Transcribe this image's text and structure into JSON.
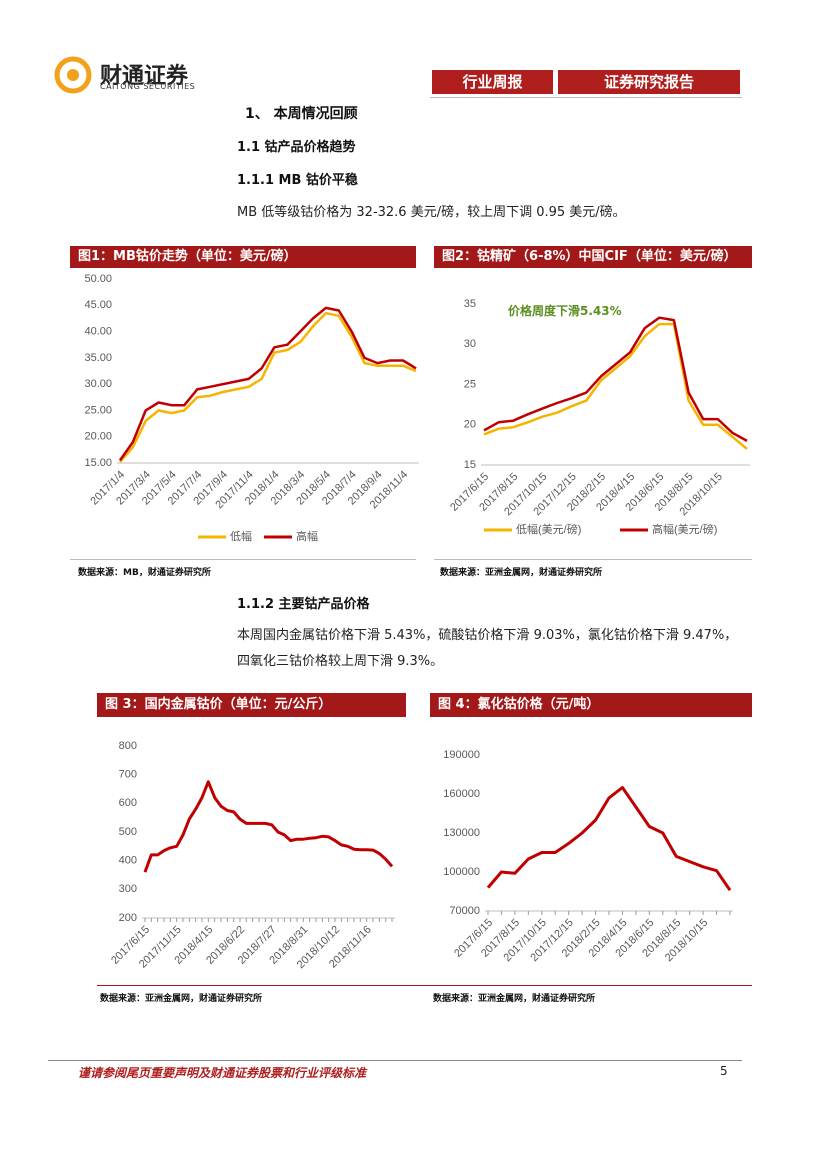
{
  "header": {
    "brand": "财通证券",
    "brand_en": "CAITONG SECURITIES",
    "tabs": [
      "行业周报",
      "证券研究报告"
    ]
  },
  "headings": [
    "1、 本周情况回顾",
    "1.1  钴产品价格趋势",
    "1.1.1  MB 钴价平稳",
    "1.1.2  主要钴产品价格"
  ],
  "paragraphs": [
    "MB 低等级钴价格为 32-32.6 美元/磅，较上周下调 0.95 美元/磅。",
    "本周国内金属钴价格下滑 5.43%，硫酸钴价格下滑 9.03%，氯化钴价格下滑 9.47%，",
    "四氧化三钴价格较上周下滑 9.3%。"
  ],
  "chart_data": [
    {
      "type": "line",
      "title": "图1：MB钴价走势（单位：美元/磅）",
      "source": "数据来源：MB，财通证券研究所",
      "categories": [
        "2017/1/4",
        null,
        "2017/3/4",
        null,
        "2017/5/4",
        null,
        "2017/7/4",
        null,
        "2017/9/4",
        null,
        "2017/11/4",
        null,
        "2018/1/4",
        null,
        "2018/3/4",
        null,
        "2018/5/4",
        null,
        "2018/7/4",
        null,
        "2018/9/4",
        null,
        "2018/11/4",
        null
      ],
      "series": [
        {
          "name": "低幅",
          "color": "#f5b400",
          "values": [
            15.2,
            18,
            23,
            25,
            24.5,
            25,
            27.5,
            27.8,
            28.5,
            29,
            29.5,
            31,
            36,
            36.5,
            38,
            41,
            43.5,
            43,
            39,
            34,
            33.5,
            33.5,
            33.5,
            32.5
          ]
        },
        {
          "name": "高幅",
          "color": "#c00000",
          "values": [
            15.5,
            19,
            25,
            26.5,
            26,
            26,
            29,
            29.5,
            30,
            30.5,
            31,
            33,
            37,
            37.5,
            40,
            42.5,
            44.5,
            44,
            40,
            35,
            34,
            34.5,
            34.5,
            33
          ]
        }
      ],
      "ylim": [
        15,
        50
      ],
      "yticks": [
        {
          "value": 15,
          "label": "15.00"
        },
        {
          "value": 20,
          "label": "20.00"
        },
        {
          "value": 25,
          "label": "25.00"
        },
        {
          "value": 30,
          "label": "30.00"
        },
        {
          "value": 35,
          "label": "35.00"
        },
        {
          "value": 40,
          "label": "40.00"
        },
        {
          "value": 45,
          "label": "45.00"
        },
        {
          "value": 50,
          "label": "50.00"
        }
      ],
      "legend": "bottom"
    },
    {
      "type": "line",
      "title": "图2：钴精矿（6-8%）中国CIF（单位：美元/磅）",
      "source": "数据来源：亚洲金属网，财通证券研究所",
      "annotation": "价格周度下滑5.43%",
      "categories": [
        "2017/6/15",
        null,
        "2017/8/15",
        null,
        "2017/10/15",
        null,
        "2017/12/15",
        null,
        "2018/2/15",
        null,
        "2018/4/15",
        null,
        "2018/6/15",
        null,
        "2018/8/15",
        null,
        "2018/10/15",
        null,
        null
      ],
      "series": [
        {
          "name": "低幅(美元/磅)",
          "color": "#f5b400",
          "values": [
            18.8,
            19.5,
            19.7,
            20.3,
            21,
            21.5,
            22.3,
            23,
            25.5,
            27,
            28.5,
            31,
            32.5,
            32.5,
            23,
            20,
            20,
            18.5,
            17
          ]
        },
        {
          "name": "高幅(美元/磅)",
          "color": "#c00000",
          "values": [
            19.3,
            20.3,
            20.5,
            21.3,
            22,
            22.7,
            23.3,
            24,
            26,
            27.5,
            29,
            32,
            33.3,
            33,
            24,
            20.7,
            20.7,
            19,
            18
          ]
        }
      ],
      "ylim": [
        15,
        35
      ],
      "yticks": [
        15,
        20,
        25,
        30,
        35
      ],
      "legend": "bottom"
    },
    {
      "type": "line",
      "title": "图 3：国内金属钴价（单位：元/公斤）",
      "source": "数据来源：亚洲金属网，财通证券研究所",
      "categories": [
        "2017/6/15",
        null,
        null,
        null,
        null,
        "2017/11/15",
        null,
        null,
        null,
        null,
        "2018/4/15",
        null,
        null,
        null,
        null,
        "2018/6/22",
        null,
        null,
        null,
        null,
        "2018/7/27",
        null,
        null,
        null,
        null,
        "2018/8/31",
        null,
        null,
        null,
        null,
        "2018/10/12",
        null,
        null,
        null,
        null,
        "2018/11/16",
        null,
        null,
        null,
        null
      ],
      "values": [
        360,
        420,
        420,
        435,
        445,
        450,
        490,
        545,
        580,
        620,
        675,
        620,
        590,
        575,
        570,
        545,
        530,
        530,
        530,
        530,
        525,
        500,
        490,
        470,
        475,
        475,
        478,
        480,
        485,
        483,
        470,
        455,
        450,
        440,
        438,
        438,
        437,
        425,
        405,
        380
      ],
      "color": "#c00000",
      "ylim": [
        200,
        800
      ],
      "yticks": [
        200,
        300,
        400,
        500,
        600,
        700,
        800
      ]
    },
    {
      "type": "line",
      "title": "图 4：氯化钴价格（元/吨）",
      "source": "数据来源：亚洲金属网，财通证券研究所",
      "categories": [
        "2017/6/15",
        null,
        "2017/8/15",
        null,
        "2017/10/15",
        null,
        "2017/12/15",
        null,
        "2018/2/15",
        null,
        "2018/4/15",
        null,
        "2018/6/15",
        null,
        "2018/8/15",
        null,
        "2018/10/15",
        null,
        null
      ],
      "values": [
        88000,
        100000,
        99000,
        110000,
        115000,
        115000,
        122000,
        130000,
        140000,
        157000,
        165000,
        150000,
        135000,
        130000,
        112000,
        108000,
        104000,
        101000,
        86000
      ],
      "color": "#c00000",
      "ylim": [
        70000,
        190000
      ],
      "yticks": [
        70000,
        100000,
        130000,
        160000,
        190000
      ]
    }
  ],
  "footer": {
    "text": "谨请参阅尾页重要声明及财通证券股票和行业评级标准",
    "page": "5"
  }
}
